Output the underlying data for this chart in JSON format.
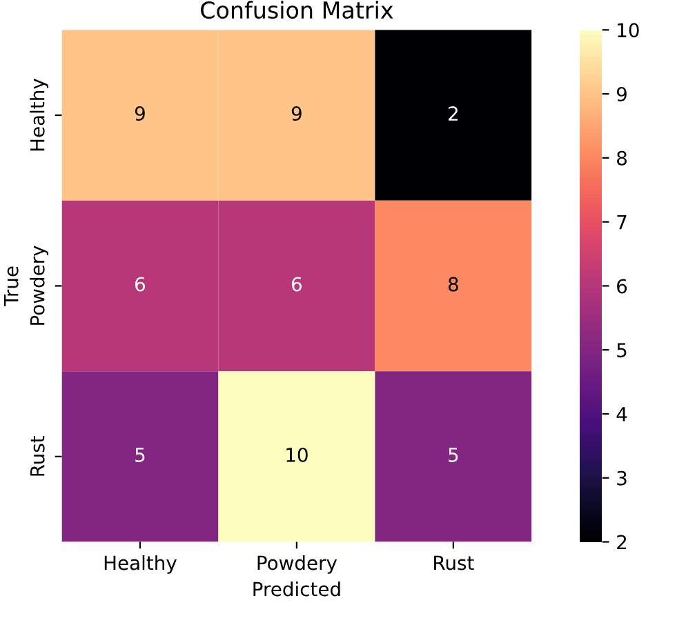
{
  "chart_data": {
    "type": "heatmap",
    "title": "Confusion Matrix",
    "xlabel": "Predicted",
    "ylabel": "True",
    "categories": [
      "Healthy",
      "Powdery",
      "Rust"
    ],
    "y_categories": [
      "Healthy",
      "Powdery",
      "Rust"
    ],
    "cells": [
      [
        9,
        9,
        2
      ],
      [
        6,
        6,
        8
      ],
      [
        5,
        10,
        5
      ]
    ],
    "clim": [
      2,
      10
    ],
    "cticks": [
      2,
      3,
      4,
      5,
      6,
      7,
      8,
      9,
      10
    ],
    "data_labels": true
  }
}
